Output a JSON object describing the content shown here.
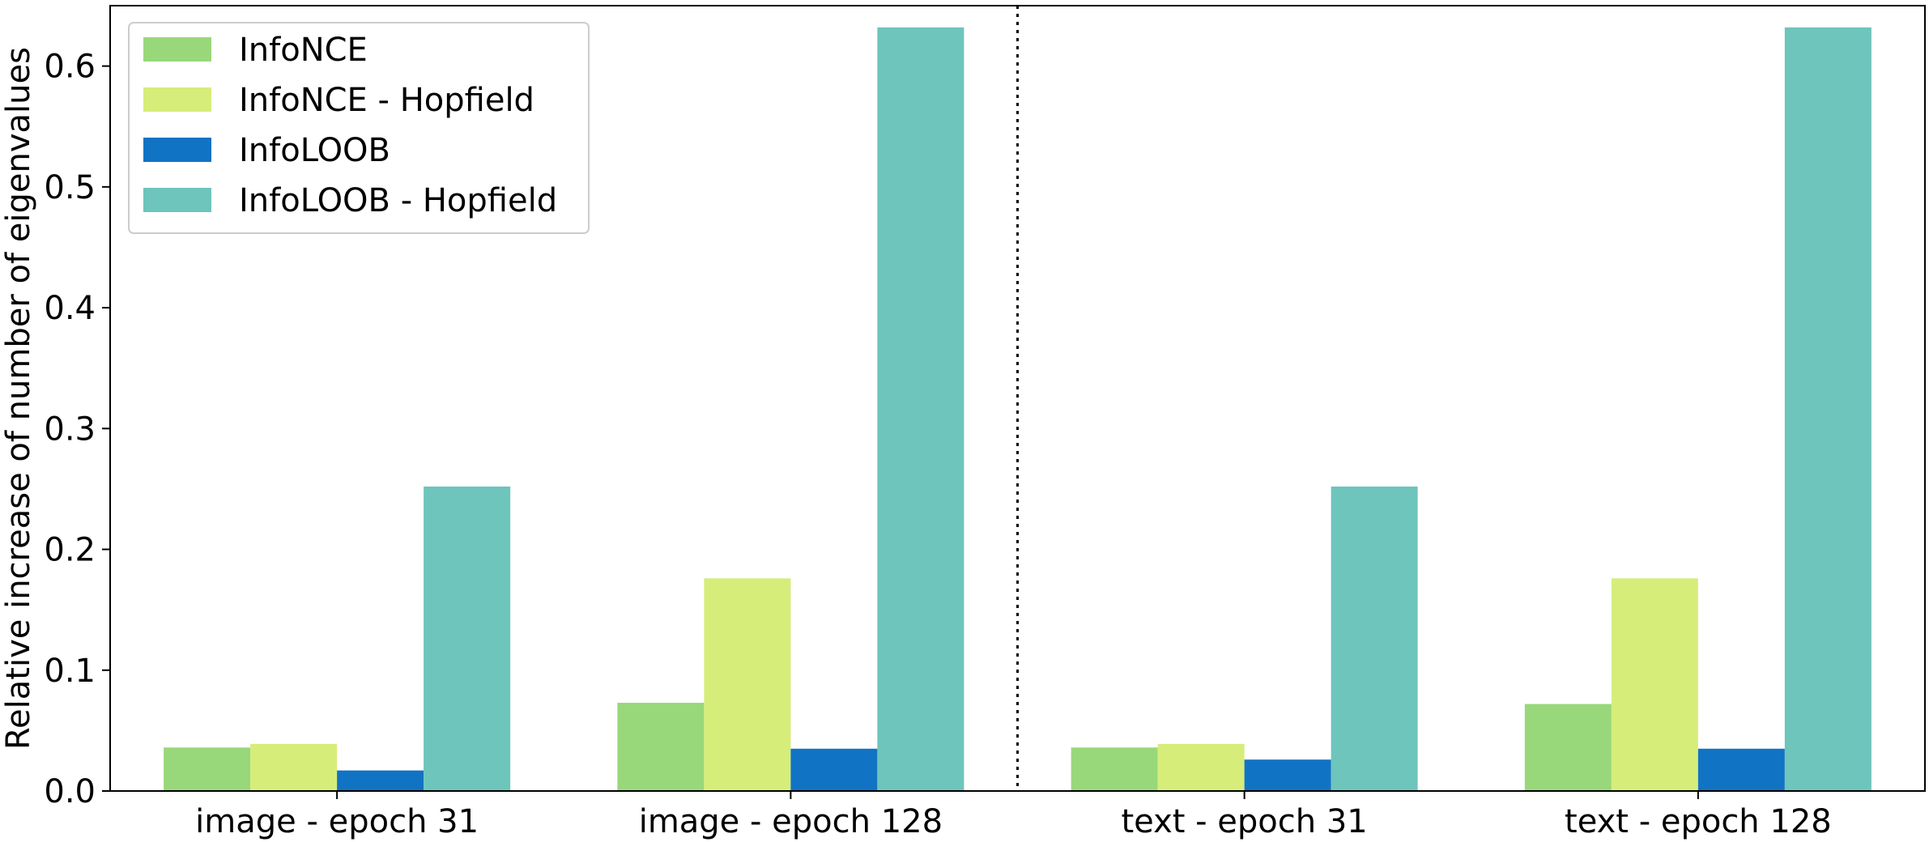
{
  "chart_data": {
    "type": "bar",
    "title": "",
    "xlabel": "",
    "ylabel": "Relative increase of number of eigenvalues",
    "ylim": [
      0,
      0.65
    ],
    "yticks": [
      "0.0",
      "0.1",
      "0.2",
      "0.3",
      "0.4",
      "0.5",
      "0.6"
    ],
    "categories": [
      "image - epoch 31",
      "image - epoch 128",
      "text - epoch 31",
      "text - epoch 128"
    ],
    "series": [
      {
        "name": "InfoNCE",
        "color": "#98d87a",
        "values": [
          0.036,
          0.073,
          0.036,
          0.072
        ]
      },
      {
        "name": "InfoNCE - Hopfield",
        "color": "#d6ed7a",
        "values": [
          0.039,
          0.176,
          0.039,
          0.176
        ]
      },
      {
        "name": "InfoLOOB",
        "color": "#1173c4",
        "values": [
          0.017,
          0.035,
          0.026,
          0.035
        ]
      },
      {
        "name": "InfoLOOB - Hopfield",
        "color": "#6dc5bc",
        "values": [
          0.252,
          0.632,
          0.252,
          0.632
        ]
      }
    ],
    "separator": "dotted vertical line between image and text groups",
    "grid": false,
    "legend_position": "top-left"
  }
}
